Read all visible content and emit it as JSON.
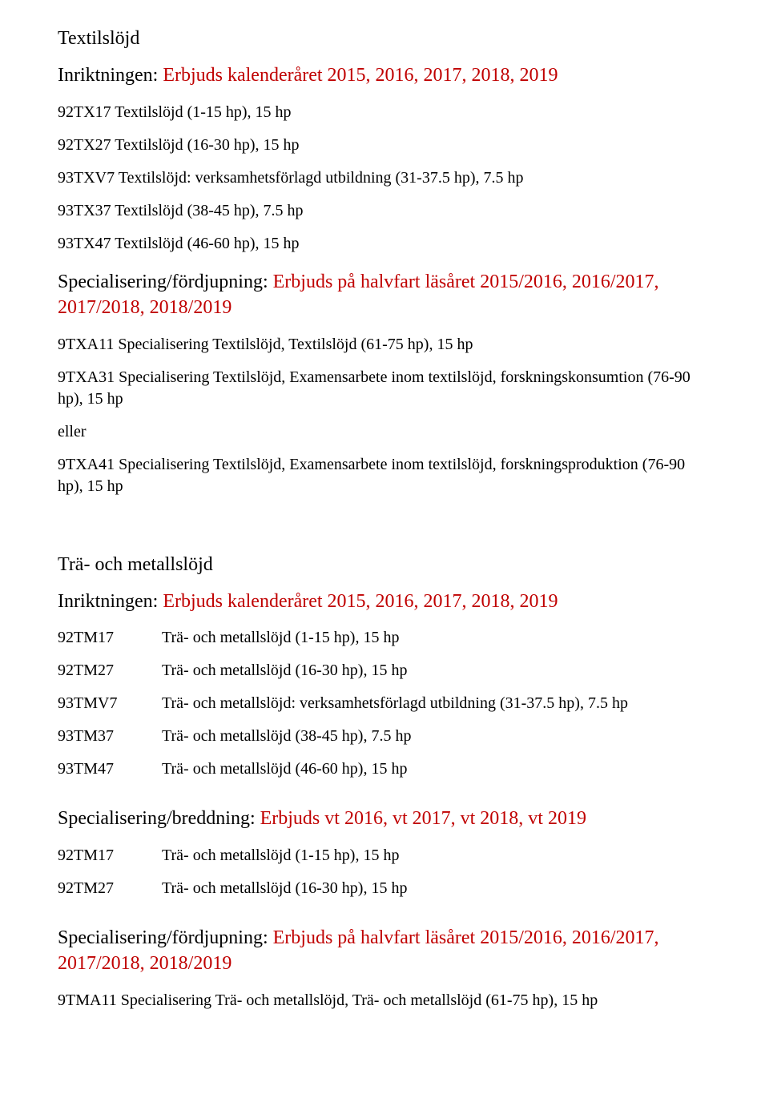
{
  "colors": {
    "text": "#000000",
    "accent": "#c00000",
    "background": "#ffffff"
  },
  "typography": {
    "body_family": "Times New Roman",
    "body_size_pt": 15,
    "heading_size_pt": 18
  },
  "section1": {
    "heading": "Textilslöjd",
    "lead_label": "Inriktningen:",
    "lead_value": "Erbjuds kalenderåret 2015, 2016, 2017, 2018, 2019",
    "courses": [
      "92TX17 Textilslöjd (1-15 hp), 15 hp",
      "92TX27 Textilslöjd (16-30 hp), 15 hp",
      "93TXV7 Textilslöjd: verksamhetsförlagd utbildning (31-37.5 hp), 7.5 hp",
      "93TX37 Textilslöjd (38-45 hp), 7.5 hp",
      "93TX47 Textilslöjd (46-60 hp), 15 hp"
    ],
    "spec_label": "Specialisering/fördjupning:",
    "spec_value": "Erbjuds på halvfart läsåret 2015/2016, 2016/2017, 2017/2018, 2018/2019",
    "spec_courses": [
      "9TXA11 Specialisering Textilslöjd, Textilslöjd (61-75 hp), 15 hp",
      "9TXA31 Specialisering Textilslöjd, Examensarbete inom textilslöjd, forskningskonsumtion (76-90 hp), 15 hp"
    ],
    "or_word": "eller",
    "spec_courses2": [
      "9TXA41 Specialisering Textilslöjd, Examensarbete inom textilslöjd, forskningsproduktion (76-90 hp), 15 hp"
    ]
  },
  "section2": {
    "heading": "Trä- och metallslöjd",
    "lead_label": "Inriktningen:",
    "lead_value": "Erbjuds kalenderåret 2015, 2016, 2017, 2018, 2019",
    "table1": [
      {
        "code": "92TM17",
        "desc": "Trä- och metallslöjd (1-15 hp), 15 hp"
      },
      {
        "code": "92TM27",
        "desc": "Trä- och metallslöjd (16-30 hp), 15 hp"
      },
      {
        "code": "93TMV7",
        "desc": "Trä- och metallslöjd: verksamhetsförlagd utbildning (31-37.5 hp), 7.5 hp"
      },
      {
        "code": "93TM37",
        "desc": "Trä- och metallslöjd (38-45 hp), 7.5 hp"
      },
      {
        "code": "93TM47",
        "desc": "Trä- och metallslöjd (46-60 hp), 15 hp"
      }
    ],
    "spec1_label": "Specialisering/breddning:",
    "spec1_value": "Erbjuds vt 2016, vt 2017, vt 2018, vt 2019",
    "table2": [
      {
        "code": "92TM17",
        "desc": "Trä- och metallslöjd (1-15 hp), 15 hp"
      },
      {
        "code": "92TM27",
        "desc": "Trä- och metallslöjd (16-30 hp), 15 hp"
      }
    ],
    "spec2_label": "Specialisering/fördjupning:",
    "spec2_value": "Erbjuds på halvfart läsåret 2015/2016, 2016/2017, 2017/2018, 2018/2019",
    "spec2_courses": [
      "9TMA11 Specialisering Trä- och metallslöjd, Trä- och metallslöjd (61-75 hp), 15 hp"
    ]
  }
}
